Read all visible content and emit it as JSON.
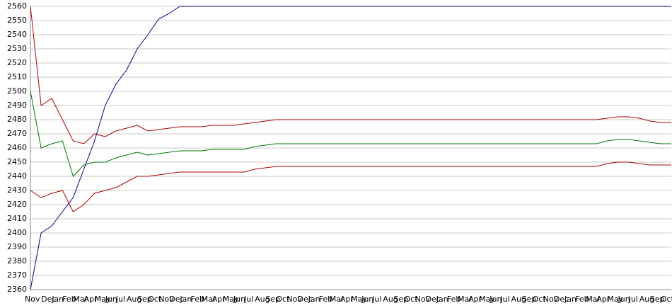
{
  "chart_data": {
    "type": "line",
    "categories": [
      "Nov",
      "Dec",
      "Jan",
      "Feb",
      "Mar",
      "Apr",
      "May",
      "Jun",
      "Jul",
      "Aug",
      "Sep",
      "Oct",
      "Nov",
      "Dec",
      "Jan",
      "Feb",
      "Mar",
      "Apr",
      "May",
      "Jun",
      "Jul",
      "Aug",
      "Sep",
      "Oct",
      "Nov",
      "Dec",
      "Jan",
      "Feb",
      "Mar",
      "Apr",
      "May",
      "Jun",
      "Jul",
      "Aug",
      "Sep",
      "Oct",
      "Nov",
      "Dec",
      "Jan",
      "Feb",
      "Mar",
      "Apr",
      "May",
      "Jun",
      "Jul",
      "Aug",
      "Sep",
      "Oct",
      "Nov",
      "Dec",
      "Jan",
      "Feb",
      "Mar",
      "Apr",
      "May",
      "Jun",
      "Jul",
      "Aug",
      "Sep",
      "Oct",
      "Nov"
    ],
    "series": [
      {
        "color": "#000080",
        "values": [
          2360,
          2400,
          2405,
          2415,
          2425,
          2445,
          2465,
          2490,
          2505,
          2515,
          2530,
          2540,
          2551,
          2555,
          2560,
          2560,
          2560,
          2560,
          2560,
          2560,
          2560,
          2560,
          2560,
          2560,
          2560,
          2560,
          2560,
          2560,
          2560,
          2560,
          2560,
          2560,
          2560,
          2560,
          2560,
          2560,
          2560,
          2560,
          2560,
          2560,
          2560,
          2560,
          2560,
          2560,
          2560,
          2560,
          2560,
          2560,
          2560,
          2560,
          2560,
          2560,
          2560,
          2560,
          2560,
          2560,
          2560,
          2560,
          2560,
          2560,
          2560
        ]
      },
      {
        "color": "#aa0000",
        "values": [
          2560,
          2490,
          2495,
          2480,
          2465,
          2463,
          2470,
          2468,
          2472,
          2474,
          2476,
          2472,
          2473,
          2474,
          2475,
          2475,
          2475,
          2476,
          2476,
          2476,
          2477,
          2478,
          2479,
          2480,
          2480,
          2480,
          2480,
          2480,
          2480,
          2480,
          2480,
          2480,
          2480,
          2480,
          2480,
          2480,
          2480,
          2480,
          2480,
          2480,
          2480,
          2480,
          2480,
          2480,
          2480,
          2480,
          2480,
          2480,
          2480,
          2480,
          2480,
          2480,
          2480,
          2480,
          2481,
          2482,
          2482,
          2481,
          2479,
          2478,
          2478
        ]
      },
      {
        "color": "#007700",
        "values": [
          2500,
          2460,
          2463,
          2465,
          2440,
          2448,
          2450,
          2450,
          2453,
          2455,
          2457,
          2455,
          2456,
          2457,
          2458,
          2458,
          2458,
          2459,
          2459,
          2459,
          2459,
          2461,
          2462,
          2463,
          2463,
          2463,
          2463,
          2463,
          2463,
          2463,
          2463,
          2463,
          2463,
          2463,
          2463,
          2463,
          2463,
          2463,
          2463,
          2463,
          2463,
          2463,
          2463,
          2463,
          2463,
          2463,
          2463,
          2463,
          2463,
          2463,
          2463,
          2463,
          2463,
          2463,
          2465,
          2466,
          2466,
          2465,
          2464,
          2463,
          2463
        ]
      },
      {
        "color": "#aa0000",
        "values": [
          2430,
          2425,
          2428,
          2430,
          2415,
          2420,
          2428,
          2430,
          2432,
          2436,
          2440,
          2440,
          2441,
          2442,
          2443,
          2443,
          2443,
          2443,
          2443,
          2443,
          2443,
          2445,
          2446,
          2447,
          2447,
          2447,
          2447,
          2447,
          2447,
          2447,
          2447,
          2447,
          2447,
          2447,
          2447,
          2447,
          2447,
          2447,
          2447,
          2447,
          2447,
          2447,
          2447,
          2447,
          2447,
          2447,
          2447,
          2447,
          2447,
          2447,
          2447,
          2447,
          2447,
          2447,
          2449,
          2450,
          2450,
          2449,
          2448,
          2448,
          2448
        ]
      }
    ],
    "ylim": [
      2360,
      2560
    ],
    "yticks": [
      2360,
      2370,
      2380,
      2390,
      2400,
      2410,
      2420,
      2430,
      2440,
      2450,
      2460,
      2470,
      2480,
      2490,
      2500,
      2510,
      2520,
      2530,
      2540,
      2550,
      2560
    ],
    "grid": true
  }
}
